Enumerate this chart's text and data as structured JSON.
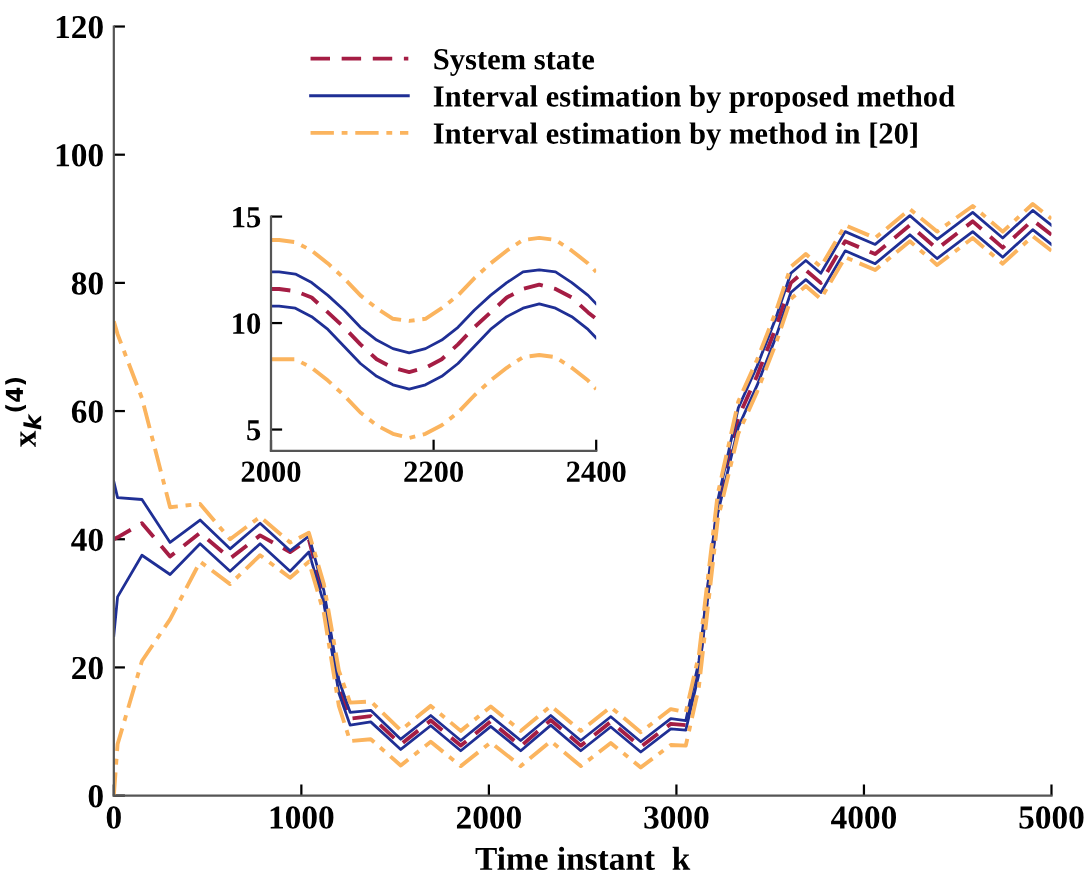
{
  "chart_data": [
    {
      "type": "line",
      "xlabel": "Time instant  k",
      "ylabel": "x$_{k}$$^{(4)}$",
      "x": [
        0,
        20,
        150,
        300,
        460,
        620,
        780,
        940,
        1040,
        1120,
        1200,
        1260,
        1370,
        1530,
        1690,
        1850,
        2010,
        2170,
        2330,
        2490,
        2650,
        2810,
        2970,
        3050,
        3120,
        3220,
        3330,
        3430,
        3530,
        3610,
        3690,
        3770,
        3900,
        4060,
        4245,
        4390,
        4580,
        4740,
        4900,
        5000
      ],
      "series": [
        {
          "name": "System state",
          "color": "#a51d44",
          "line_style": "dashed",
          "values": [
            40,
            40.3,
            42.5,
            37.3,
            41,
            37,
            40.6,
            38,
            40,
            31,
            17,
            12,
            12.4,
            8,
            11.7,
            7.8,
            11.6,
            7.7,
            11.8,
            7.8,
            11.5,
            7.6,
            11.2,
            11,
            20,
            45,
            59,
            65.5,
            73,
            80,
            82,
            80,
            86.5,
            84.5,
            89,
            85.3,
            89.6,
            85.5,
            89.8,
            87.5
          ]
        },
        {
          "name": "Interval estimation by proposed method",
          "color": "#1f2f95",
          "line_style": "solid",
          "values": [
            49,
            46.5,
            46.2,
            39.5,
            43,
            38.5,
            42.5,
            38.2,
            40.5,
            32,
            18,
            13,
            13.3,
            8.8,
            12.5,
            8.6,
            12.4,
            8.6,
            12.5,
            8.6,
            12.3,
            8.4,
            12,
            11.7,
            21,
            46,
            60.5,
            67,
            74.5,
            81.5,
            83.5,
            81.5,
            88,
            86,
            90.5,
            86.8,
            91,
            87,
            91.3,
            89
          ]
        },
        {
          "color": "#1f2f95",
          "line_style": "solid",
          "values": [
            25,
            31,
            37.5,
            34.5,
            39.3,
            35,
            39.3,
            35,
            38,
            30,
            16,
            11,
            11.5,
            7.2,
            10.9,
            7,
            10.8,
            7,
            11,
            7,
            10.7,
            6.8,
            10.4,
            10.2,
            19,
            44,
            57.5,
            64,
            71.5,
            78.5,
            80.5,
            78.5,
            85,
            83,
            87.5,
            83.8,
            88,
            84,
            88.3,
            86
          ]
        },
        {
          "name": "Interval estimation by method in [20]",
          "color": "#fbb45e",
          "line_style": "dashdot",
          "values": [
            74,
            72,
            62,
            45,
            45.5,
            40,
            43.5,
            39.5,
            41,
            33,
            19.5,
            14.5,
            14.7,
            10.2,
            14,
            10.1,
            13.9,
            10.1,
            14,
            10.1,
            13.8,
            9.9,
            13.5,
            13,
            22,
            47,
            61.5,
            68,
            75.5,
            82.5,
            84.5,
            82.5,
            89,
            87,
            91.5,
            88,
            92,
            88,
            92.3,
            90
          ]
        },
        {
          "color": "#fbb45e",
          "line_style": "dashdot",
          "values": [
            0,
            8,
            21,
            27.5,
            36.5,
            33,
            37.5,
            34,
            36.5,
            28.5,
            14,
            8.5,
            8.8,
            4.7,
            8.4,
            4.6,
            8.3,
            4.6,
            8.5,
            4.6,
            8.2,
            4.4,
            7.9,
            7.8,
            17,
            43,
            56.5,
            63,
            70.5,
            77.5,
            79.5,
            77.5,
            84,
            82,
            86.5,
            82.8,
            87,
            83,
            87.3,
            85
          ]
        }
      ],
      "xlim": [
        0,
        5000
      ],
      "xticks": [
        0,
        1000,
        2000,
        3000,
        4000,
        5000
      ],
      "ylim": [
        0,
        120
      ],
      "yticks": [
        0,
        20,
        40,
        60,
        80,
        100,
        120
      ],
      "grid": false,
      "legend": "top right"
    },
    {
      "type": "line",
      "x": [
        2000,
        2010,
        2030,
        2050,
        2070,
        2090,
        2110,
        2130,
        2150,
        2170,
        2190,
        2210,
        2230,
        2250,
        2270,
        2290,
        2310,
        2330,
        2350,
        2370,
        2390,
        2400
      ],
      "series": [
        {
          "color": "#a51d44",
          "line_style": "dashed",
          "values": [
            11.6,
            11.6,
            11.5,
            11.2,
            10.5,
            9.8,
            9.0,
            8.3,
            7.9,
            7.7,
            7.9,
            8.3,
            9.0,
            9.8,
            10.5,
            11.2,
            11.6,
            11.8,
            11.6,
            11.2,
            10.5,
            10.2
          ]
        },
        {
          "color": "#1f2f95",
          "line_style": "solid",
          "values": [
            12.4,
            12.4,
            12.3,
            11.9,
            11.3,
            10.6,
            9.8,
            9.2,
            8.8,
            8.6,
            8.8,
            9.2,
            9.8,
            10.6,
            11.3,
            11.9,
            12.4,
            12.5,
            12.4,
            11.9,
            11.3,
            10.9
          ]
        },
        {
          "color": "#1f2f95",
          "line_style": "solid",
          "values": [
            10.8,
            10.8,
            10.7,
            10.3,
            9.7,
            8.9,
            8.1,
            7.5,
            7.1,
            6.9,
            7.1,
            7.5,
            8.1,
            8.9,
            9.7,
            10.3,
            10.7,
            10.9,
            10.7,
            10.3,
            9.7,
            9.3
          ]
        },
        {
          "color": "#fbb45e",
          "line_style": "dashdot",
          "values": [
            13.9,
            13.9,
            13.8,
            13.4,
            12.8,
            12.1,
            11.3,
            10.7,
            10.2,
            10.1,
            10.2,
            10.7,
            11.3,
            12.1,
            12.8,
            13.4,
            13.9,
            14.0,
            13.9,
            13.4,
            12.8,
            12.4
          ]
        },
        {
          "color": "#fbb45e",
          "line_style": "dashdot",
          "values": [
            8.3,
            8.3,
            8.3,
            7.9,
            7.3,
            6.6,
            5.8,
            5.2,
            4.8,
            4.6,
            4.8,
            5.2,
            5.8,
            6.6,
            7.3,
            7.9,
            8.4,
            8.5,
            8.4,
            7.9,
            7.3,
            6.9
          ]
        }
      ],
      "xlim": [
        2000,
        2400
      ],
      "xticks": [
        2000,
        2200,
        2400
      ],
      "ylim": [
        4,
        15
      ],
      "yticks": [
        5,
        10,
        15
      ],
      "grid": false
    }
  ]
}
